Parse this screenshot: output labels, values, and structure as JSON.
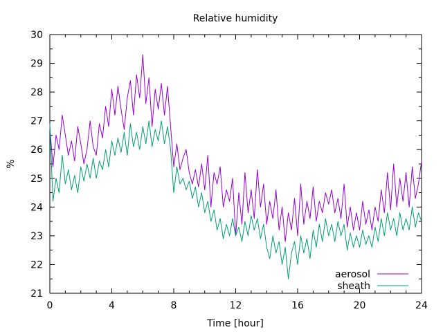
{
  "chart_data": {
    "type": "line",
    "title": "Relative humidity",
    "xlabel": "Time [hour]",
    "ylabel": "%",
    "xlim": [
      0,
      24
    ],
    "ylim": [
      21,
      30
    ],
    "xticks": [
      0,
      4,
      8,
      12,
      16,
      20,
      24
    ],
    "yticks": [
      21,
      22,
      23,
      24,
      25,
      26,
      27,
      28,
      29,
      30
    ],
    "grid": false,
    "legend_position": "bottom-right",
    "series": [
      {
        "name": "aerosol",
        "color": "#9400d3",
        "x": [
          0,
          0.2,
          0.4,
          0.6,
          0.8,
          1.0,
          1.2,
          1.4,
          1.6,
          1.8,
          2.0,
          2.2,
          2.4,
          2.6,
          2.8,
          3.0,
          3.2,
          3.4,
          3.6,
          3.8,
          4.0,
          4.2,
          4.4,
          4.6,
          4.8,
          5.0,
          5.2,
          5.4,
          5.6,
          5.8,
          6.0,
          6.2,
          6.4,
          6.6,
          6.8,
          7.0,
          7.2,
          7.4,
          7.6,
          7.8,
          8.0,
          8.2,
          8.4,
          8.6,
          8.8,
          9.0,
          9.2,
          9.4,
          9.6,
          9.8,
          10.0,
          10.2,
          10.4,
          10.6,
          10.8,
          11.0,
          11.2,
          11.4,
          11.6,
          11.8,
          12.0,
          12.2,
          12.4,
          12.6,
          12.8,
          13.0,
          13.2,
          13.4,
          13.6,
          13.8,
          14.0,
          14.2,
          14.4,
          14.6,
          14.8,
          15.0,
          15.2,
          15.4,
          15.6,
          15.8,
          16.0,
          16.2,
          16.4,
          16.6,
          16.8,
          17.0,
          17.2,
          17.4,
          17.6,
          17.8,
          18.0,
          18.2,
          18.4,
          18.6,
          18.8,
          19.0,
          19.2,
          19.4,
          19.6,
          19.8,
          20.0,
          20.2,
          20.4,
          20.6,
          20.8,
          21.0,
          21.2,
          21.4,
          21.6,
          21.8,
          22.0,
          22.2,
          22.4,
          22.6,
          22.8,
          23.0,
          23.2,
          23.4,
          23.6,
          23.8,
          24.0
        ],
        "values": [
          26.8,
          25.4,
          26.5,
          26.0,
          27.2,
          26.5,
          25.8,
          26.3,
          25.6,
          26.8,
          26.2,
          25.5,
          26.0,
          27.0,
          26.1,
          25.8,
          26.9,
          26.4,
          27.5,
          26.8,
          28.1,
          27.2,
          28.2,
          27.4,
          26.7,
          27.8,
          28.4,
          27.2,
          28.6,
          27.8,
          29.3,
          27.6,
          28.5,
          26.8,
          28.1,
          27.4,
          28.3,
          27.2,
          28.2,
          26.8,
          25.4,
          26.2,
          25.3,
          25.7,
          26.0,
          25.2,
          24.8,
          25.3,
          24.7,
          25.5,
          24.6,
          25.8,
          24.0,
          25.2,
          24.8,
          25.4,
          24.0,
          24.6,
          24.2,
          25.0,
          23.0,
          24.5,
          23.4,
          25.2,
          23.8,
          24.6,
          23.6,
          25.3,
          24.0,
          24.8,
          23.4,
          24.2,
          23.6,
          24.6,
          23.2,
          24.0,
          22.8,
          23.8,
          23.2,
          24.3,
          23.0,
          24.8,
          23.4,
          24.2,
          23.6,
          24.7,
          23.5,
          24.2,
          23.8,
          24.5,
          24.1,
          24.6,
          23.8,
          24.3,
          23.6,
          24.8,
          23.3,
          24.0,
          23.2,
          23.8,
          23.2,
          24.2,
          23.4,
          23.9,
          23.2,
          24.0,
          23.5,
          24.6,
          23.8,
          25.2,
          23.9,
          25.5,
          24.0,
          25.0,
          24.2,
          25.2,
          24.0,
          25.4,
          24.3,
          24.8,
          25.6
        ]
      },
      {
        "name": "sheath",
        "color": "#009e73",
        "x": [
          0,
          0.2,
          0.4,
          0.6,
          0.8,
          1.0,
          1.2,
          1.4,
          1.6,
          1.8,
          2.0,
          2.2,
          2.4,
          2.6,
          2.8,
          3.0,
          3.2,
          3.4,
          3.6,
          3.8,
          4.0,
          4.2,
          4.4,
          4.6,
          4.8,
          5.0,
          5.2,
          5.4,
          5.6,
          5.8,
          6.0,
          6.2,
          6.4,
          6.6,
          6.8,
          7.0,
          7.2,
          7.4,
          7.6,
          7.8,
          8.0,
          8.2,
          8.4,
          8.6,
          8.8,
          9.0,
          9.2,
          9.4,
          9.6,
          9.8,
          10.0,
          10.2,
          10.4,
          10.6,
          10.8,
          11.0,
          11.2,
          11.4,
          11.6,
          11.8,
          12.0,
          12.2,
          12.4,
          12.6,
          12.8,
          13.0,
          13.2,
          13.4,
          13.6,
          13.8,
          14.0,
          14.2,
          14.4,
          14.6,
          14.8,
          15.0,
          15.2,
          15.4,
          15.6,
          15.8,
          16.0,
          16.2,
          16.4,
          16.6,
          16.8,
          17.0,
          17.2,
          17.4,
          17.6,
          17.8,
          18.0,
          18.2,
          18.4,
          18.6,
          18.8,
          19.0,
          19.2,
          19.4,
          19.6,
          19.8,
          20.0,
          20.2,
          20.4,
          20.6,
          20.8,
          21.0,
          21.2,
          21.4,
          21.6,
          21.8,
          22.0,
          22.2,
          22.4,
          22.6,
          22.8,
          23.0,
          23.2,
          23.4,
          23.6,
          23.8,
          24.0
        ],
        "values": [
          26.9,
          24.2,
          25.0,
          24.5,
          25.8,
          24.8,
          25.3,
          24.6,
          25.1,
          24.5,
          25.4,
          24.9,
          25.5,
          25.0,
          25.7,
          25.0,
          25.6,
          25.3,
          26.0,
          25.4,
          26.3,
          25.8,
          26.4,
          25.9,
          26.6,
          25.8,
          26.9,
          26.1,
          26.6,
          26.0,
          26.8,
          26.2,
          27.0,
          26.1,
          26.7,
          26.3,
          27.0,
          26.2,
          26.8,
          26.0,
          24.5,
          25.4,
          24.8,
          25.0,
          24.6,
          24.9,
          24.3,
          24.7,
          24.0,
          24.5,
          23.8,
          24.2,
          23.5,
          23.9,
          23.2,
          23.6,
          22.9,
          23.4,
          23.0,
          23.6,
          23.0,
          23.3,
          22.8,
          23.5,
          23.0,
          23.7,
          23.2,
          23.6,
          22.9,
          23.4,
          22.6,
          22.2,
          23.0,
          22.4,
          22.8,
          22.0,
          22.6,
          21.5,
          22.4,
          22.8,
          22.0,
          23.0,
          22.4,
          22.9,
          22.2,
          23.2,
          22.6,
          23.4,
          22.8,
          23.6,
          23.0,
          23.4,
          22.8,
          23.5,
          23.0,
          23.4,
          22.5,
          23.1,
          22.6,
          23.0,
          22.6,
          23.2,
          22.7,
          23.0,
          22.6,
          23.3,
          22.8,
          23.6,
          23.0,
          23.8,
          23.2,
          23.6,
          23.0,
          23.8,
          23.2,
          23.6,
          23.2,
          24.0,
          23.3,
          23.8,
          23.5
        ]
      }
    ]
  }
}
